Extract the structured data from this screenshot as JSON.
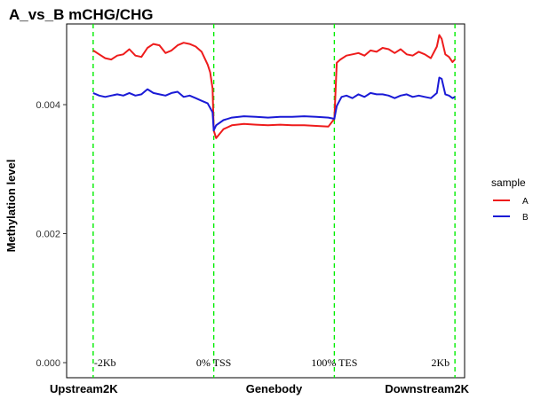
{
  "chart_data": {
    "type": "line",
    "title": "A_vs_B  mCHG/CHG",
    "ylabel": "Methylation level",
    "xlabel": "",
    "ylim": [
      0,
      0.0051
    ],
    "y_ticks": [
      {
        "value": 0.0,
        "label": "0.000"
      },
      {
        "value": 0.002,
        "label": "0.002"
      },
      {
        "value": 0.004,
        "label": "0.004"
      }
    ],
    "x_region_labels": [
      {
        "x": 0,
        "label": "Upstream2K"
      },
      {
        "x": 1,
        "label": "Genebody"
      },
      {
        "x": 2,
        "label": "Downstream2K"
      }
    ],
    "boundaries": [
      {
        "x": 0,
        "label": "-2Kb"
      },
      {
        "x": 1,
        "label": "0% TSS"
      },
      {
        "x": 2,
        "label": "100% TES"
      },
      {
        "x": 3,
        "label": "2Kb"
      }
    ],
    "boundary_color": "#00ee00",
    "legend": {
      "title": "sample",
      "position": "right"
    },
    "grid": false,
    "series": [
      {
        "name": "A",
        "color": "#ee1c1c",
        "points": [
          [
            0,
            0.00484
          ],
          [
            0.05,
            0.00478
          ],
          [
            0.1,
            0.00472
          ],
          [
            0.15,
            0.0047
          ],
          [
            0.2,
            0.00476
          ],
          [
            0.25,
            0.00478
          ],
          [
            0.3,
            0.00486
          ],
          [
            0.35,
            0.00476
          ],
          [
            0.4,
            0.00474
          ],
          [
            0.45,
            0.00488
          ],
          [
            0.5,
            0.00494
          ],
          [
            0.55,
            0.00492
          ],
          [
            0.6,
            0.0048
          ],
          [
            0.65,
            0.00484
          ],
          [
            0.7,
            0.00492
          ],
          [
            0.75,
            0.00496
          ],
          [
            0.8,
            0.00494
          ],
          [
            0.85,
            0.0049
          ],
          [
            0.9,
            0.00482
          ],
          [
            0.95,
            0.00462
          ],
          [
            0.97,
            0.0045
          ],
          [
            0.99,
            0.00425
          ],
          [
            1.0,
            0.0036
          ],
          [
            1.02,
            0.00348
          ],
          [
            1.08,
            0.00362
          ],
          [
            1.15,
            0.00368
          ],
          [
            1.25,
            0.0037
          ],
          [
            1.35,
            0.00369
          ],
          [
            1.45,
            0.00368
          ],
          [
            1.55,
            0.00369
          ],
          [
            1.65,
            0.00368
          ],
          [
            1.75,
            0.00368
          ],
          [
            1.85,
            0.00367
          ],
          [
            1.95,
            0.00366
          ],
          [
            2.0,
            0.00378
          ],
          [
            2.02,
            0.00465
          ],
          [
            2.05,
            0.0047
          ],
          [
            2.1,
            0.00476
          ],
          [
            2.15,
            0.00478
          ],
          [
            2.2,
            0.0048
          ],
          [
            2.25,
            0.00476
          ],
          [
            2.3,
            0.00484
          ],
          [
            2.35,
            0.00482
          ],
          [
            2.4,
            0.00488
          ],
          [
            2.45,
            0.00486
          ],
          [
            2.5,
            0.0048
          ],
          [
            2.55,
            0.00486
          ],
          [
            2.6,
            0.00478
          ],
          [
            2.65,
            0.00476
          ],
          [
            2.7,
            0.00482
          ],
          [
            2.75,
            0.00478
          ],
          [
            2.8,
            0.00472
          ],
          [
            2.85,
            0.0049
          ],
          [
            2.87,
            0.00508
          ],
          [
            2.89,
            0.00502
          ],
          [
            2.92,
            0.00478
          ],
          [
            2.95,
            0.00474
          ],
          [
            2.98,
            0.00466
          ],
          [
            3.0,
            0.0047
          ]
        ]
      },
      {
        "name": "B",
        "color": "#1a1ad6",
        "points": [
          [
            0,
            0.00418
          ],
          [
            0.05,
            0.00414
          ],
          [
            0.1,
            0.00412
          ],
          [
            0.15,
            0.00414
          ],
          [
            0.2,
            0.00416
          ],
          [
            0.25,
            0.00414
          ],
          [
            0.3,
            0.00418
          ],
          [
            0.35,
            0.00414
          ],
          [
            0.4,
            0.00416
          ],
          [
            0.45,
            0.00424
          ],
          [
            0.5,
            0.00418
          ],
          [
            0.55,
            0.00416
          ],
          [
            0.6,
            0.00414
          ],
          [
            0.65,
            0.00418
          ],
          [
            0.7,
            0.0042
          ],
          [
            0.75,
            0.00412
          ],
          [
            0.8,
            0.00414
          ],
          [
            0.85,
            0.0041
          ],
          [
            0.9,
            0.00406
          ],
          [
            0.95,
            0.00402
          ],
          [
            0.99,
            0.00388
          ],
          [
            1.0,
            0.0036
          ],
          [
            1.02,
            0.00368
          ],
          [
            1.08,
            0.00376
          ],
          [
            1.15,
            0.0038
          ],
          [
            1.25,
            0.00382
          ],
          [
            1.35,
            0.00381
          ],
          [
            1.45,
            0.0038
          ],
          [
            1.55,
            0.00381
          ],
          [
            1.65,
            0.00381
          ],
          [
            1.75,
            0.00382
          ],
          [
            1.85,
            0.00381
          ],
          [
            1.95,
            0.0038
          ],
          [
            2.0,
            0.00378
          ],
          [
            2.02,
            0.00398
          ],
          [
            2.06,
            0.00412
          ],
          [
            2.1,
            0.00414
          ],
          [
            2.15,
            0.0041
          ],
          [
            2.2,
            0.00416
          ],
          [
            2.25,
            0.00412
          ],
          [
            2.3,
            0.00418
          ],
          [
            2.35,
            0.00416
          ],
          [
            2.4,
            0.00416
          ],
          [
            2.45,
            0.00414
          ],
          [
            2.5,
            0.0041
          ],
          [
            2.55,
            0.00414
          ],
          [
            2.6,
            0.00416
          ],
          [
            2.65,
            0.00412
          ],
          [
            2.7,
            0.00414
          ],
          [
            2.75,
            0.00412
          ],
          [
            2.8,
            0.0041
          ],
          [
            2.85,
            0.00418
          ],
          [
            2.87,
            0.00442
          ],
          [
            2.89,
            0.0044
          ],
          [
            2.92,
            0.00416
          ],
          [
            2.95,
            0.00414
          ],
          [
            2.98,
            0.0041
          ],
          [
            3.0,
            0.00412
          ]
        ]
      }
    ]
  }
}
